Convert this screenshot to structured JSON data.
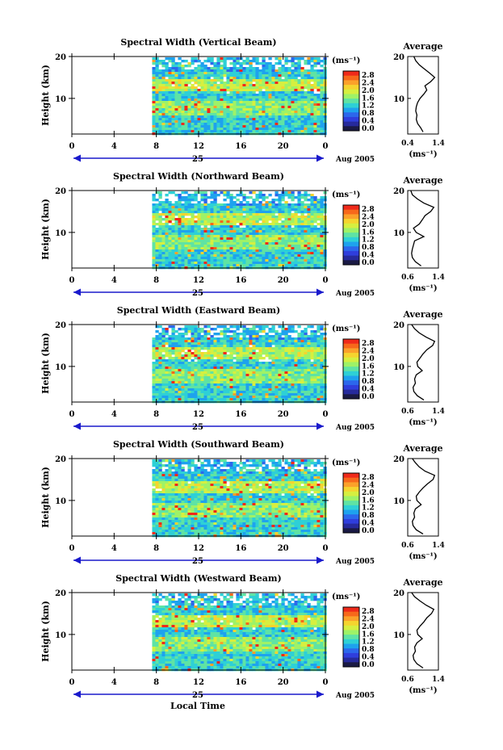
{
  "figure": {
    "date_label": "Aug 2005",
    "day_label": "25",
    "local_time_label": "Local Time",
    "avg_title": "Average",
    "unit_label": "(ms⁻¹)",
    "avg_unit_label": "(ms⁻¹)"
  },
  "colorbar": {
    "ticks": [
      "2.8",
      "2.4",
      "2.0",
      "1.6",
      "1.2",
      "0.8",
      "0.4",
      "0.0"
    ],
    "colors": [
      "#ef2a1a",
      "#f7681b",
      "#fba12a",
      "#f5d42f",
      "#d6ef40",
      "#9ef267",
      "#5fe3a4",
      "#2ed0d6",
      "#1ea2ee",
      "#2c67ec",
      "#2f3edc",
      "#262a9c",
      "#1a1a44"
    ]
  },
  "chart_data": [
    {
      "type": "heatmap",
      "title": "Spectral Width (Vertical Beam)",
      "ylabel": "Height (km)",
      "xlabel": "Local Time",
      "x_ticks": [
        "0",
        "4",
        "8",
        "12",
        "16",
        "20",
        "0"
      ],
      "y_ticks": [
        "20",
        "10"
      ],
      "xlim": [
        0,
        24
      ],
      "ylim": [
        1.5,
        20
      ],
      "zlim": [
        0,
        2.8
      ],
      "data_start_hour": 7.6,
      "average_profile": {
        "xlabel": "(ms⁻¹)",
        "x_ticks": [
          "0.4",
          "1.4"
        ],
        "y_ticks": [
          "20",
          "10"
        ],
        "xlim": [
          0.4,
          1.4
        ],
        "height_km": [
          2,
          3,
          4,
          5,
          6,
          7,
          8,
          9,
          10,
          11,
          12,
          13,
          14,
          15,
          16,
          17,
          18,
          19,
          20
        ],
        "values": [
          0.9,
          0.82,
          0.72,
          0.68,
          0.7,
          0.66,
          0.68,
          0.72,
          0.8,
          0.92,
          1.02,
          0.96,
          1.15,
          1.28,
          1.12,
          0.95,
          0.78,
          0.66,
          0.6
        ]
      }
    },
    {
      "type": "heatmap",
      "title": "Spectral Width (Northward Beam)",
      "ylabel": "Height (km)",
      "xlabel": "Local Time",
      "x_ticks": [
        "0",
        "4",
        "8",
        "12",
        "16",
        "20",
        "0"
      ],
      "y_ticks": [
        "20",
        "10"
      ],
      "xlim": [
        0,
        24
      ],
      "ylim": [
        1.5,
        20
      ],
      "zlim": [
        0,
        2.8
      ],
      "data_start_hour": 7.6,
      "average_profile": {
        "xlabel": "(ms⁻¹)",
        "x_ticks": [
          "0.6",
          "1.4"
        ],
        "y_ticks": [
          "20",
          "10"
        ],
        "xlim": [
          0.6,
          1.4
        ],
        "height_km": [
          2,
          3,
          4,
          5,
          6,
          7,
          8,
          9,
          10,
          11,
          12,
          13,
          14,
          15,
          16,
          17,
          18,
          19,
          20
        ],
        "values": [
          0.95,
          0.8,
          0.72,
          0.7,
          0.72,
          0.75,
          0.78,
          1.02,
          0.82,
          0.75,
          0.9,
          0.98,
          1.05,
          1.2,
          1.28,
          1.02,
          0.85,
          0.72,
          0.68
        ]
      }
    },
    {
      "type": "heatmap",
      "title": "Spectral Width (Eastward Beam)",
      "ylabel": "Height (km)",
      "xlabel": "Local Time",
      "x_ticks": [
        "0",
        "4",
        "8",
        "12",
        "16",
        "20",
        "0"
      ],
      "y_ticks": [
        "20",
        "10"
      ],
      "xlim": [
        0,
        24
      ],
      "ylim": [
        1.5,
        20
      ],
      "zlim": [
        0,
        2.8
      ],
      "data_start_hour": 7.6,
      "average_profile": {
        "xlabel": "(ms⁻¹)",
        "x_ticks": [
          "0.6",
          "1.4"
        ],
        "y_ticks": [
          "20",
          "10"
        ],
        "xlim": [
          0.6,
          1.4
        ],
        "height_km": [
          2,
          3,
          4,
          5,
          6,
          7,
          8,
          9,
          10,
          11,
          12,
          13,
          14,
          15,
          16,
          17,
          18,
          19,
          20
        ],
        "values": [
          1.02,
          0.85,
          0.76,
          0.74,
          0.8,
          0.78,
          0.82,
          0.98,
          0.86,
          0.84,
          0.92,
          1.0,
          1.1,
          1.25,
          1.3,
          1.08,
          0.9,
          0.78,
          0.7
        ]
      }
    },
    {
      "type": "heatmap",
      "title": "Spectral Width (Southward Beam)",
      "ylabel": "Height (km)",
      "xlabel": "Local Time",
      "x_ticks": [
        "0",
        "4",
        "8",
        "12",
        "16",
        "20",
        "0"
      ],
      "y_ticks": [
        "20",
        "10"
      ],
      "xlim": [
        0,
        24
      ],
      "ylim": [
        1.5,
        20
      ],
      "zlim": [
        0,
        2.8
      ],
      "data_start_hour": 7.6,
      "average_profile": {
        "xlabel": "(ms⁻¹)",
        "x_ticks": [
          "0.6",
          "1.4"
        ],
        "y_ticks": [
          "20",
          "10"
        ],
        "xlim": [
          0.6,
          1.4
        ],
        "height_km": [
          2,
          3,
          4,
          5,
          6,
          7,
          8,
          9,
          10,
          11,
          12,
          13,
          14,
          15,
          16,
          17,
          18,
          19,
          20
        ],
        "values": [
          1.0,
          0.82,
          0.74,
          0.72,
          0.78,
          0.76,
          0.8,
          0.95,
          0.84,
          0.82,
          0.9,
          1.0,
          1.12,
          1.26,
          1.3,
          1.05,
          0.9,
          0.8,
          0.72
        ]
      }
    },
    {
      "type": "heatmap",
      "title": "Spectral Width (Westward Beam)",
      "ylabel": "Height (km)",
      "xlabel": "Local Time",
      "x_ticks": [
        "0",
        "4",
        "8",
        "12",
        "16",
        "20",
        "0"
      ],
      "y_ticks": [
        "20",
        "10"
      ],
      "xlim": [
        0,
        24
      ],
      "ylim": [
        1.5,
        20
      ],
      "zlim": [
        0,
        2.8
      ],
      "data_start_hour": 7.6,
      "average_profile": {
        "xlabel": "(ms⁻¹)",
        "x_ticks": [
          "0.6",
          "1.4"
        ],
        "y_ticks": [
          "20",
          "10"
        ],
        "xlim": [
          0.6,
          1.4
        ],
        "height_km": [
          2,
          3,
          4,
          5,
          6,
          7,
          8,
          9,
          10,
          11,
          12,
          13,
          14,
          15,
          16,
          17,
          18,
          19,
          20
        ],
        "values": [
          1.0,
          0.84,
          0.76,
          0.74,
          0.8,
          0.78,
          0.84,
          0.98,
          0.86,
          0.84,
          0.92,
          1.02,
          1.1,
          1.22,
          1.28,
          1.08,
          0.92,
          0.78,
          0.7
        ]
      }
    }
  ]
}
